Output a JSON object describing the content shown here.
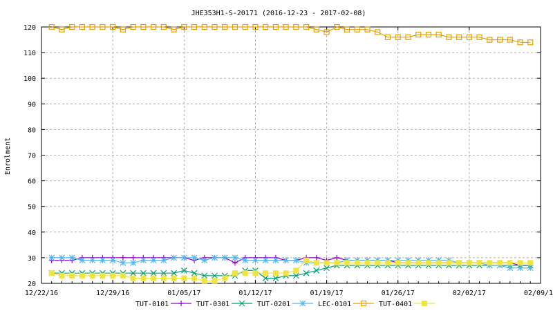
{
  "chart_data": {
    "type": "line",
    "title": "JHE353H1-S-20171 (2016-12-23 - 2017-02-08)",
    "ylabel": "Enrolment",
    "xlabel": "",
    "x_ticks": [
      "12/22/16",
      "12/29/16",
      "01/05/17",
      "01/12/17",
      "01/19/17",
      "01/26/17",
      "02/02/17",
      "02/09/17"
    ],
    "x_range": [
      "2016-12-22",
      "2017-02-09"
    ],
    "y_ticks": [
      20,
      30,
      40,
      50,
      60,
      70,
      80,
      90,
      100,
      110,
      120
    ],
    "ylim": [
      20,
      120
    ],
    "grid": true,
    "legend_placement": "bottom",
    "dates": [
      "2016-12-23",
      "2016-12-24",
      "2016-12-25",
      "2016-12-26",
      "2016-12-27",
      "2016-12-28",
      "2016-12-29",
      "2016-12-30",
      "2016-12-31",
      "2017-01-01",
      "2017-01-02",
      "2017-01-03",
      "2017-01-04",
      "2017-01-05",
      "2017-01-06",
      "2017-01-07",
      "2017-01-08",
      "2017-01-09",
      "2017-01-10",
      "2017-01-11",
      "2017-01-12",
      "2017-01-13",
      "2017-01-14",
      "2017-01-15",
      "2017-01-16",
      "2017-01-17",
      "2017-01-18",
      "2017-01-19",
      "2017-01-20",
      "2017-01-21",
      "2017-01-22",
      "2017-01-23",
      "2017-01-24",
      "2017-01-25",
      "2017-01-26",
      "2017-01-27",
      "2017-01-28",
      "2017-01-29",
      "2017-01-30",
      "2017-01-31",
      "2017-02-01",
      "2017-02-02",
      "2017-02-03",
      "2017-02-04",
      "2017-02-05",
      "2017-02-06",
      "2017-02-07",
      "2017-02-08"
    ],
    "series": [
      {
        "name": "TUT-0101",
        "color": "#9400d3",
        "marker": "plus",
        "values": [
          29,
          29,
          29,
          30,
          30,
          30,
          30,
          30,
          30,
          30,
          30,
          30,
          30,
          30,
          29,
          30,
          30,
          30,
          28,
          30,
          30,
          30,
          30,
          29,
          29,
          30,
          30,
          29,
          30,
          29,
          29,
          29,
          29,
          29,
          28,
          28,
          28,
          28,
          28,
          28,
          28,
          28,
          28,
          28,
          28,
          28,
          27,
          27
        ]
      },
      {
        "name": "TUT-0301",
        "color": "#009e73",
        "marker": "x",
        "values": [
          24,
          24,
          24,
          24,
          24,
          24,
          24,
          24,
          24,
          24,
          24,
          24,
          24,
          25,
          24,
          23,
          23,
          23,
          23,
          25,
          25,
          22,
          22,
          23,
          23,
          24,
          25,
          26,
          27,
          27,
          27,
          27,
          27,
          27,
          27,
          27,
          27,
          27,
          27,
          27,
          27,
          27,
          27,
          27,
          27,
          27,
          27,
          27
        ]
      },
      {
        "name": "TUT-0201",
        "color": "#56b4e9",
        "marker": "star",
        "values": [
          30,
          30,
          30,
          29,
          29,
          29,
          29,
          28,
          28,
          29,
          29,
          29,
          30,
          30,
          30,
          29,
          30,
          30,
          30,
          29,
          29,
          29,
          29,
          29,
          29,
          28,
          28,
          28,
          28,
          29,
          29,
          29,
          29,
          29,
          29,
          29,
          29,
          29,
          29,
          29,
          28,
          28,
          28,
          27,
          27,
          26,
          26,
          26
        ]
      },
      {
        "name": "LEC-0101",
        "color": "#e69f00",
        "marker": "square-open",
        "values": [
          120,
          119,
          120,
          120,
          120,
          120,
          120,
          119,
          120,
          120,
          120,
          120,
          119,
          120,
          120,
          120,
          120,
          120,
          120,
          120,
          120,
          120,
          120,
          120,
          120,
          120,
          119,
          118,
          120,
          119,
          119,
          119,
          118,
          116,
          116,
          116,
          117,
          117,
          117,
          116,
          116,
          116,
          116,
          115,
          115,
          115,
          114,
          114
        ]
      },
      {
        "name": "TUT-0401",
        "color": "#f0e442",
        "marker": "square-filled",
        "values": [
          24,
          23,
          23,
          23,
          23,
          23,
          23,
          23,
          22,
          22,
          22,
          22,
          22,
          22,
          22,
          21,
          21,
          22,
          24,
          24,
          24,
          24,
          24,
          24,
          25,
          29,
          28,
          28,
          28,
          28,
          28,
          28,
          28,
          28,
          28,
          28,
          28,
          28,
          28,
          28,
          28,
          28,
          28,
          28,
          28,
          28,
          28,
          28
        ]
      }
    ]
  }
}
